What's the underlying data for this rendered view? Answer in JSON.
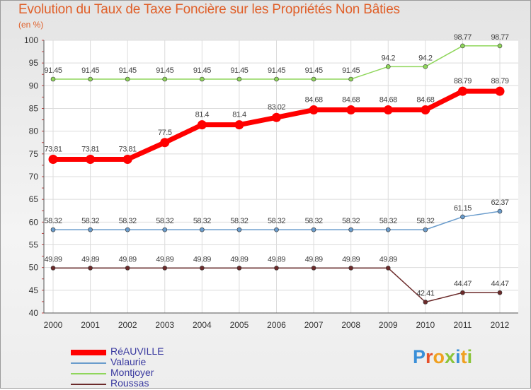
{
  "chart_data": {
    "type": "line",
    "title": "Evolution du Taux de Taxe Foncière sur les Propriétés Non Bâties",
    "ylabel": "(en %)",
    "xlabel": "",
    "ylim": [
      40,
      100
    ],
    "yticks": [
      40,
      45,
      50,
      55,
      60,
      65,
      70,
      75,
      80,
      85,
      90,
      95,
      100
    ],
    "categories": [
      "2000",
      "2001",
      "2002",
      "2003",
      "2004",
      "2005",
      "2006",
      "2007",
      "2008",
      "2009",
      "2010",
      "2011",
      "2012"
    ],
    "grid": true,
    "series": [
      {
        "name": "RéAUVILLE",
        "color": "#ff0000",
        "values": [
          73.81,
          73.81,
          73.81,
          77.5,
          81.4,
          81.4,
          83.02,
          84.68,
          84.68,
          84.68,
          84.68,
          88.79,
          88.79
        ]
      },
      {
        "name": "Valaurie",
        "color": "#6a9ccc",
        "values": [
          58.32,
          58.32,
          58.32,
          58.32,
          58.32,
          58.32,
          58.32,
          58.32,
          58.32,
          58.32,
          58.32,
          61.15,
          62.37
        ]
      },
      {
        "name": "Montjoyer",
        "color": "#8fd65b",
        "values": [
          91.45,
          91.45,
          91.45,
          91.45,
          91.45,
          91.45,
          91.45,
          91.45,
          91.45,
          94.2,
          94.2,
          98.77,
          98.77
        ]
      },
      {
        "name": "Roussas",
        "color": "#6b2a2a",
        "values": [
          49.89,
          49.89,
          49.89,
          49.89,
          49.89,
          49.89,
          49.89,
          49.89,
          49.89,
          49.89,
          42.41,
          44.47,
          44.47
        ]
      }
    ]
  },
  "brand": {
    "letters": [
      {
        "ch": "P",
        "color": "#3a8fd8"
      },
      {
        "ch": "r",
        "color": "#e7502a"
      },
      {
        "ch": "o",
        "color": "#f0a020"
      },
      {
        "ch": "x",
        "color": "#8ac43a"
      },
      {
        "ch": "i",
        "color": "#3a8fd8"
      },
      {
        "ch": "t",
        "color": "#f0a020"
      },
      {
        "ch": "i",
        "color": "#8ac43a"
      }
    ]
  }
}
